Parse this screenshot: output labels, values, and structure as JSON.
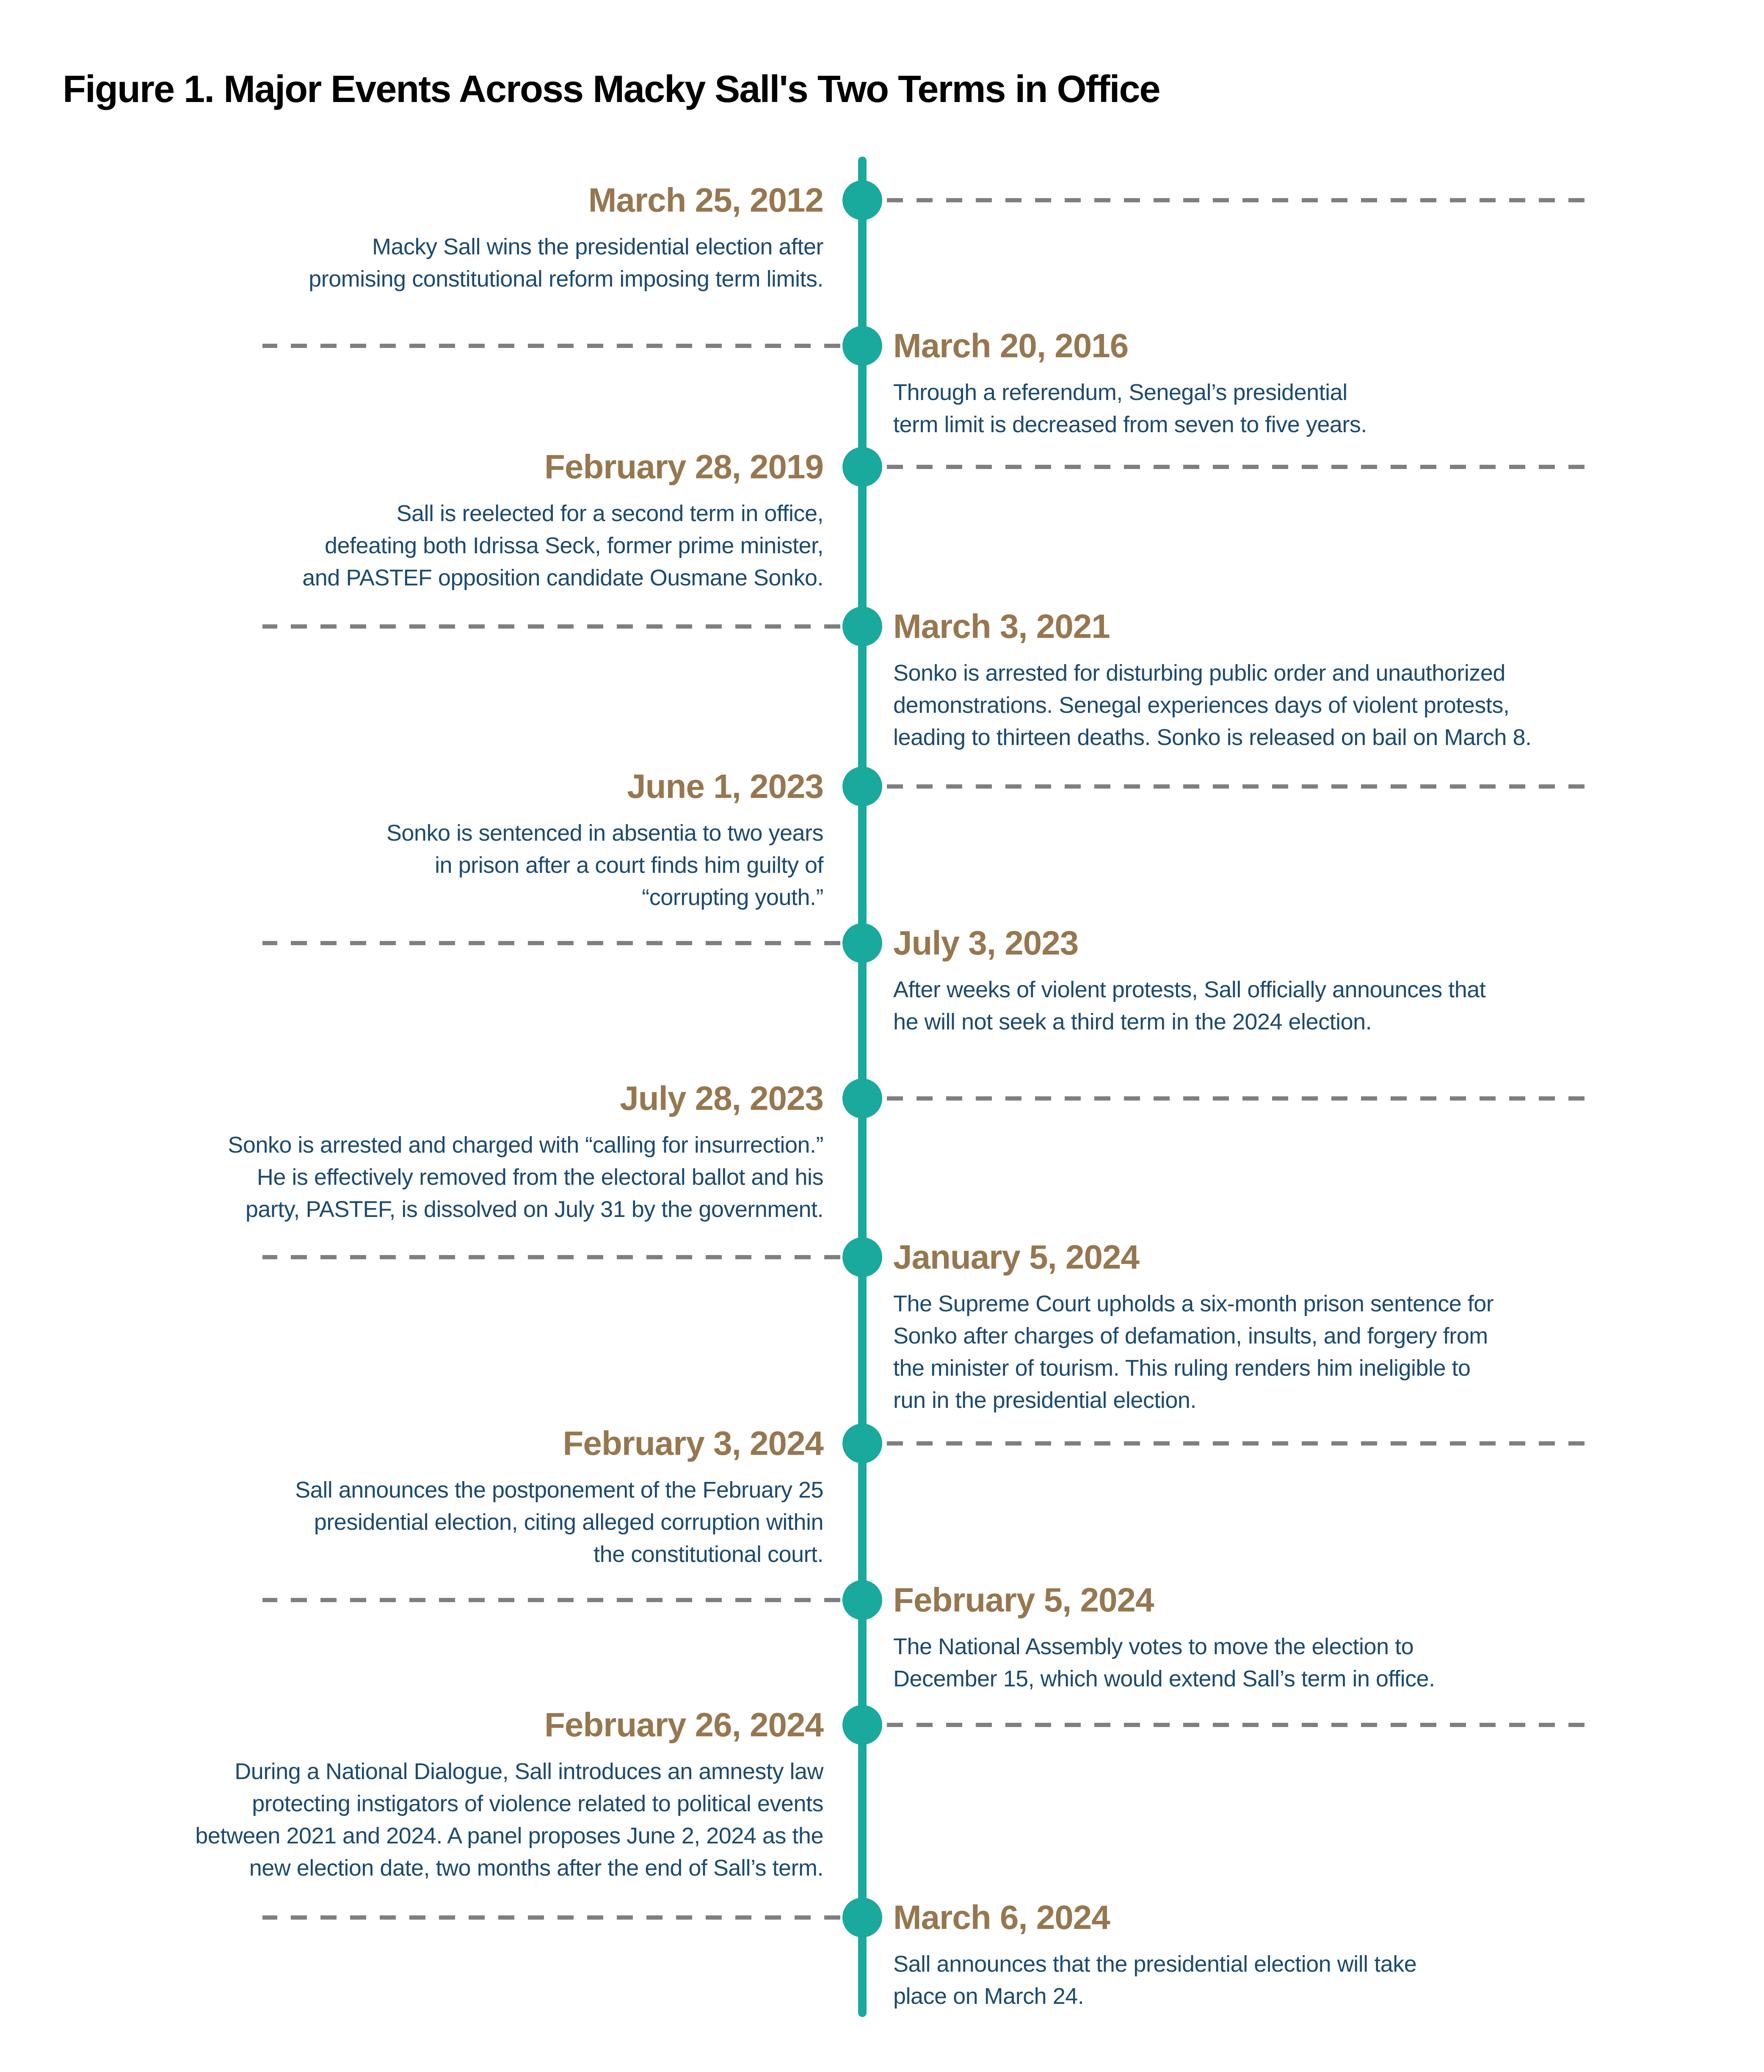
{
  "title": "Figure 1. Major Events Across Macky Sall's Two Terms in Office",
  "colors": {
    "timeline": "#1AA99D",
    "date_text": "#96774F",
    "body_text": "#1C4A6E",
    "connector": "#7F7F7F",
    "title_text": "#000000"
  },
  "events": [
    {
      "date": "March 25, 2012",
      "side": "left",
      "description": "Macky Sall wins the presidential election after\npromising constitutional reform imposing term limits."
    },
    {
      "date": "March 20, 2016",
      "side": "right",
      "description": "Through a referendum, Senegal’s presidential\nterm limit is decreased from seven to five years."
    },
    {
      "date": "February 28, 2019",
      "side": "left",
      "description": "Sall is reelected for a second term in office,\ndefeating both Idrissa Seck, former prime minister,\nand PASTEF opposition candidate Ousmane Sonko."
    },
    {
      "date": "March 3, 2021",
      "side": "right",
      "description": "Sonko is arrested for disturbing public order and unauthorized\ndemonstrations. Senegal experiences days of violent protests,\nleading to thirteen deaths. Sonko is released on bail on March 8."
    },
    {
      "date": "June 1, 2023",
      "side": "left",
      "description": "Sonko is sentenced in absentia to two years\nin prison after a court finds him guilty of\n“corrupting youth.”"
    },
    {
      "date": "July 3, 2023",
      "side": "right",
      "description": "After weeks of violent protests, Sall officially announces that\nhe will not seek a third term in the 2024 election."
    },
    {
      "date": "July 28, 2023",
      "side": "left",
      "description": "Sonko is arrested and charged with “calling for insurrection.”\nHe is effectively removed from the electoral ballot and his\nparty, PASTEF, is dissolved on July 31 by the government."
    },
    {
      "date": "January 5, 2024",
      "side": "right",
      "description": "The Supreme Court upholds a six-month prison sentence for\nSonko after charges of defamation, insults, and forgery from\nthe minister of tourism. This ruling renders him ineligible to\nrun in the presidential election."
    },
    {
      "date": "February 3, 2024",
      "side": "left",
      "description": "Sall announces the postponement of the February 25\npresidential election, citing alleged corruption within\nthe constitutional court."
    },
    {
      "date": "February 5, 2024",
      "side": "right",
      "description": "The National Assembly votes to move the election to\nDecember 15, which would extend Sall’s term in office."
    },
    {
      "date": "February 26, 2024",
      "side": "left",
      "description": "During a National Dialogue, Sall introduces an amnesty law\nprotecting instigators of violence related to political events\nbetween 2021 and 2024. A panel proposes June 2, 2024 as the\nnew election date, two months after the end of Sall’s term."
    },
    {
      "date": "March 6, 2024",
      "side": "right",
      "description": "Sall announces that the presidential election will take\nplace on March 24."
    }
  ]
}
